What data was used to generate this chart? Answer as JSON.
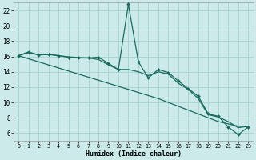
{
  "xlabel": "Humidex (Indice chaleur)",
  "bg_color": "#cceaea",
  "grid_color": "#aad4d4",
  "line_color": "#1a6b5e",
  "xlim": [
    -0.5,
    23.5
  ],
  "ylim": [
    5.0,
    23.0
  ],
  "yticks": [
    6,
    8,
    10,
    12,
    14,
    16,
    18,
    20,
    22
  ],
  "xticks": [
    0,
    1,
    2,
    3,
    4,
    5,
    6,
    7,
    8,
    9,
    10,
    11,
    12,
    13,
    14,
    15,
    16,
    17,
    18,
    19,
    20,
    21,
    22,
    23
  ],
  "x_data": [
    0,
    1,
    2,
    3,
    4,
    5,
    6,
    7,
    8,
    9,
    10,
    11,
    12,
    13,
    14,
    15,
    16,
    17,
    18,
    19,
    20,
    21,
    22,
    23
  ],
  "y_main": [
    16.1,
    16.6,
    16.2,
    16.3,
    16.1,
    15.9,
    15.8,
    15.8,
    15.9,
    15.1,
    14.3,
    22.8,
    15.3,
    13.2,
    14.3,
    13.9,
    12.8,
    11.8,
    10.8,
    8.5,
    8.2,
    6.8,
    5.8,
    6.8
  ],
  "y_curve": [
    16.1,
    16.5,
    16.2,
    16.25,
    16.1,
    15.95,
    15.85,
    15.8,
    15.6,
    14.9,
    14.3,
    14.3,
    14.0,
    13.5,
    14.0,
    13.7,
    12.5,
    11.7,
    10.5,
    8.4,
    8.1,
    7.5,
    6.7,
    6.9
  ],
  "y_linear": [
    16.1,
    15.7,
    15.3,
    14.9,
    14.5,
    14.1,
    13.7,
    13.3,
    12.9,
    12.5,
    12.1,
    11.7,
    11.3,
    10.9,
    10.5,
    10.0,
    9.5,
    9.0,
    8.5,
    8.0,
    7.5,
    7.2,
    6.9,
    6.8
  ]
}
